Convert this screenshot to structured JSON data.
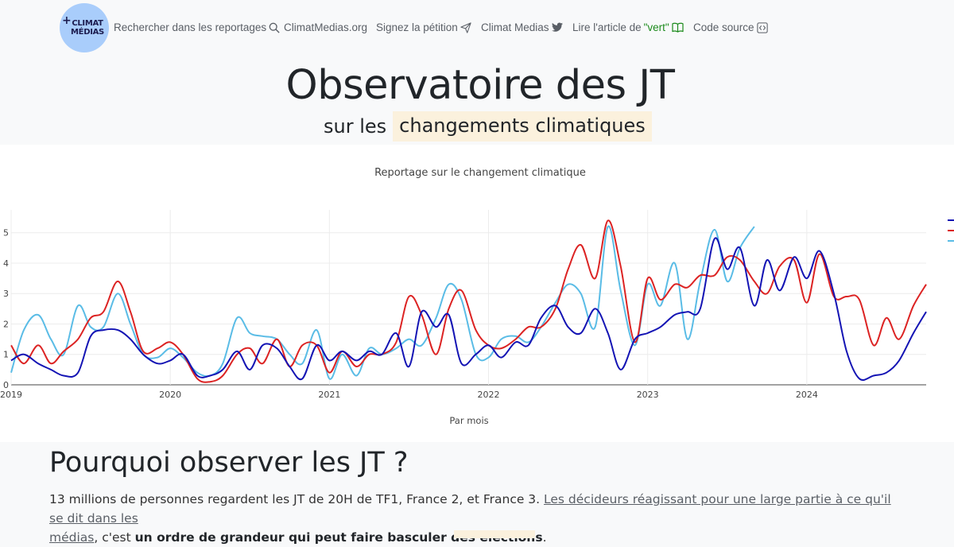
{
  "nav": {
    "logo_lines": [
      "CLIMAT",
      "MÉDIAS"
    ],
    "logo_plus": "+",
    "search": "Rechercher dans les reportages",
    "site": "ClimatMedias.org",
    "petition": "Signez la pétition",
    "twitter": "Climat Medias",
    "article_prefix": "Lire l'article de ",
    "article_highlight": "\"vert\"",
    "source": "Code source",
    "icons": [
      "search-icon",
      "send-icon",
      "twitter-icon",
      "book-icon",
      "code-icon"
    ]
  },
  "hero": {
    "title": "Observatoire des JT",
    "subtitle_prefix": "sur les",
    "subtitle_highlight": "changements climatiques"
  },
  "chart_data": {
    "type": "line",
    "title": "Reportage sur le changement climatique",
    "xlabel": "Par mois",
    "ylabel": "",
    "xlim": [
      2019.0,
      2024.75
    ],
    "ylim": [
      0,
      5.75
    ],
    "x_ticks": [
      "2019",
      "2020",
      "2021",
      "2022",
      "2023",
      "2024"
    ],
    "y_ticks": [
      0,
      1,
      2,
      3,
      4,
      5
    ],
    "grid": true,
    "legend": "top-right, cut off",
    "series": [
      {
        "color": "#1414b4",
        "x": [
          2019.0,
          2019.08,
          2019.17,
          2019.25,
          2019.33,
          2019.42,
          2019.5,
          2019.58,
          2019.67,
          2019.75,
          2019.83,
          2019.92,
          2020.0,
          2020.08,
          2020.17,
          2020.25,
          2020.33,
          2020.42,
          2020.5,
          2020.58,
          2020.67,
          2020.75,
          2020.83,
          2020.92,
          2021.0,
          2021.08,
          2021.17,
          2021.25,
          2021.33,
          2021.42,
          2021.5,
          2021.58,
          2021.67,
          2021.75,
          2021.83,
          2021.92,
          2022.0,
          2022.08,
          2022.17,
          2022.25,
          2022.33,
          2022.42,
          2022.5,
          2022.58,
          2022.67,
          2022.75,
          2022.83,
          2022.92,
          2023.0,
          2023.08,
          2023.17,
          2023.25,
          2023.33,
          2023.42,
          2023.5,
          2023.58,
          2023.67,
          2023.75,
          2023.83,
          2023.92,
          2024.0,
          2024.08,
          2024.17,
          2024.25,
          2024.33,
          2024.42,
          2024.5,
          2024.58,
          2024.67,
          2024.75
        ],
        "y": [
          0.8,
          1.0,
          0.7,
          0.5,
          0.3,
          0.4,
          1.6,
          1.8,
          1.8,
          1.5,
          1.0,
          0.7,
          0.8,
          1.0,
          0.3,
          0.3,
          0.5,
          1.1,
          0.5,
          1.3,
          1.2,
          0.6,
          0.2,
          1.3,
          0.8,
          1.1,
          0.8,
          1.1,
          1.0,
          1.7,
          0.6,
          2.4,
          1.9,
          2.3,
          0.7,
          1.0,
          1.3,
          0.9,
          1.4,
          1.3,
          2.2,
          2.6,
          1.9,
          1.7,
          2.5,
          1.7,
          0.5,
          1.5,
          1.7,
          1.9,
          2.3,
          2.4,
          2.5,
          4.8,
          3.8,
          4.5,
          2.6,
          4.1,
          3.1,
          4.2,
          3.5,
          4.4,
          3.0,
          1.1,
          0.2,
          0.3,
          0.4,
          0.8,
          1.7,
          2.4
        ]
      },
      {
        "color": "#dc2323",
        "x": [
          2019.0,
          2019.08,
          2019.17,
          2019.25,
          2019.33,
          2019.42,
          2019.5,
          2019.58,
          2019.67,
          2019.75,
          2019.83,
          2019.92,
          2020.0,
          2020.08,
          2020.17,
          2020.25,
          2020.33,
          2020.42,
          2020.5,
          2020.58,
          2020.67,
          2020.75,
          2020.83,
          2020.92,
          2021.0,
          2021.08,
          2021.17,
          2021.25,
          2021.33,
          2021.42,
          2021.5,
          2021.58,
          2021.67,
          2021.75,
          2021.83,
          2021.92,
          2022.0,
          2022.08,
          2022.17,
          2022.25,
          2022.33,
          2022.42,
          2022.5,
          2022.58,
          2022.67,
          2022.75,
          2022.83,
          2022.92,
          2023.0,
          2023.08,
          2023.17,
          2023.25,
          2023.33,
          2023.42,
          2023.5,
          2023.58,
          2023.67,
          2023.75,
          2023.83,
          2023.92,
          2024.0,
          2024.08,
          2024.17,
          2024.25,
          2024.33,
          2024.42,
          2024.5,
          2024.58,
          2024.67,
          2024.75
        ],
        "y": [
          1.3,
          0.7,
          1.3,
          0.7,
          1.1,
          1.5,
          2.2,
          2.4,
          3.4,
          2.4,
          1.1,
          1.2,
          1.4,
          1.0,
          0.2,
          0.1,
          0.3,
          1.0,
          1.2,
          0.7,
          1.5,
          0.6,
          1.3,
          1.3,
          0.4,
          1.1,
          0.6,
          1.0,
          1.0,
          1.4,
          2.9,
          2.3,
          1.0,
          2.5,
          3.1,
          1.8,
          1.3,
          1.2,
          1.5,
          1.9,
          1.9,
          2.5,
          3.8,
          4.6,
          3.5,
          5.4,
          3.9,
          1.4,
          3.5,
          2.8,
          3.3,
          3.2,
          3.6,
          3.6,
          4.2,
          4.1,
          3.4,
          3.0,
          3.9,
          4.1,
          2.7,
          4.3,
          2.9,
          2.9,
          2.8,
          1.3,
          2.2,
          1.5,
          2.6,
          3.3
        ]
      },
      {
        "color": "#5abce6",
        "x": [
          2019.0,
          2019.08,
          2019.17,
          2019.25,
          2019.33,
          2019.42,
          2019.5,
          2019.58,
          2019.67,
          2019.75,
          2019.83,
          2019.92,
          2020.0,
          2020.08,
          2020.17,
          2020.25,
          2020.33,
          2020.42,
          2020.5,
          2020.58,
          2020.67,
          2020.75,
          2020.83,
          2020.92,
          2021.0,
          2021.08,
          2021.17,
          2021.25,
          2021.33,
          2021.42,
          2021.5,
          2021.58,
          2021.67,
          2021.75,
          2021.83,
          2021.92,
          2022.0,
          2022.08,
          2022.17,
          2022.25,
          2022.33,
          2022.42,
          2022.5,
          2022.58,
          2022.67,
          2022.75,
          2022.83,
          2022.92,
          2023.0,
          2023.08,
          2023.17,
          2023.25,
          2023.33,
          2023.42,
          2023.5,
          2023.58,
          2023.67
        ],
        "y": [
          0.4,
          1.8,
          2.3,
          1.5,
          1.0,
          2.6,
          1.9,
          1.9,
          3.0,
          2.0,
          1.0,
          0.9,
          1.2,
          0.9,
          0.4,
          0.3,
          0.7,
          2.2,
          1.7,
          1.6,
          1.5,
          1.0,
          0.7,
          1.8,
          0.2,
          1.0,
          0.3,
          1.2,
          1.0,
          1.2,
          1.5,
          1.3,
          2.2,
          3.3,
          2.8,
          1.0,
          0.9,
          1.5,
          1.6,
          1.4,
          1.9,
          2.7,
          3.3,
          3.0,
          1.9,
          5.2,
          3.1,
          1.3,
          3.3,
          2.6,
          4.0,
          1.5,
          3.4,
          5.1,
          3.4,
          4.5,
          5.2
        ]
      }
    ]
  },
  "section": {
    "heading": "Pourquoi observer les JT ?",
    "p_text1": "13 millions de personnes regardent les JT de 20H de TF1, France 2, et France 3. ",
    "p_link_line1": "Les décideurs réagissant pour une large partie à ce qu'il se dit dans les",
    "p_link_line2": "médias",
    "p_text2": ", c'est ",
    "p_bold": "un ordre de grandeur qui peut faire basculer des élections",
    "p_text3": "."
  }
}
